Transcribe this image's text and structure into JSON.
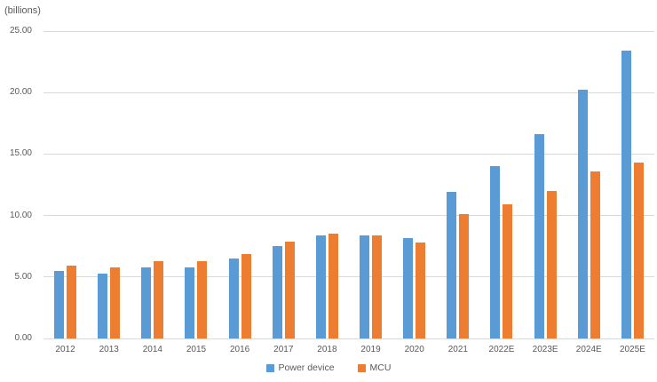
{
  "chart_data": {
    "type": "bar",
    "title": "(billions)",
    "categories": [
      "2012",
      "2013",
      "2014",
      "2015",
      "2016",
      "2017",
      "2018",
      "2019",
      "2020",
      "2021",
      "2022E",
      "2023E",
      "2024E",
      "2025E"
    ],
    "series": [
      {
        "name": "Power device",
        "color": "#5B9BD5",
        "values": [
          5.5,
          5.3,
          5.8,
          5.8,
          6.5,
          7.5,
          8.4,
          8.4,
          8.2,
          11.9,
          14.0,
          16.6,
          20.2,
          23.4
        ]
      },
      {
        "name": "MCU",
        "color": "#ED7D31",
        "values": [
          5.9,
          5.8,
          6.3,
          6.3,
          6.9,
          7.9,
          8.5,
          8.4,
          7.8,
          10.1,
          10.9,
          12.0,
          13.6,
          14.3
        ]
      }
    ],
    "ylabel": "(billions)",
    "xlabel": "",
    "ylim": [
      0,
      25
    ],
    "yticks": [
      "0.00",
      "5.00",
      "10.00",
      "15.00",
      "20.00",
      "25.00"
    ],
    "grid": true,
    "legend_position": "bottom"
  },
  "colors": {
    "background": "#FFFFFF",
    "gridline": "#D9D9D9",
    "axis_text": "#595959"
  }
}
